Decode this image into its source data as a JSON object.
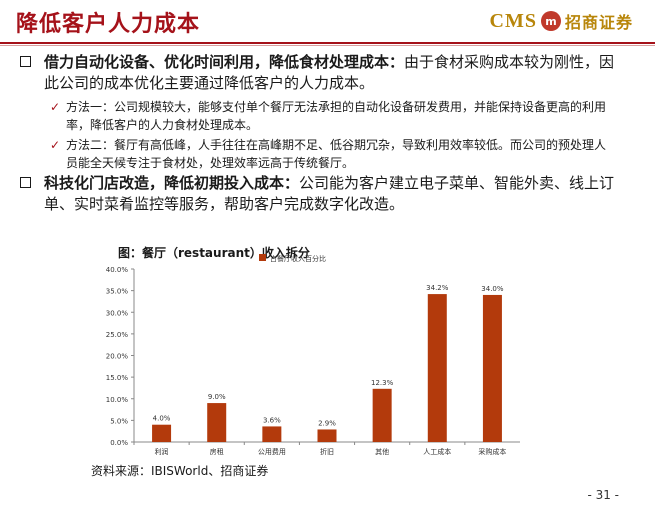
{
  "header": {
    "title": "降低客户人力成本",
    "logo_cms": "CMS",
    "logo_name": "招商证券"
  },
  "bullets": [
    {
      "bold": "借力自动化设备、优化时间利用，降低食材处理成本：",
      "text": "由于食材采购成本较为刚性，因此公司的成本优化主要通过降低客户的人力成本。"
    },
    {
      "bold": "科技化门店改造，降低初期投入成本：",
      "text": "公司能为客户建立电子菜单、智能外卖、线上订单、实时菜肴监控等服务，帮助客户完成数字化改造。"
    }
  ],
  "subpoints": [
    {
      "text": "方法一：公司规模较大，能够支付单个餐厅无法承担的自动化设备研发费用，并能保持设备更高的利用率，降低客户的人力食材处理成本。"
    },
    {
      "text": "方法二：餐厅有高低峰，人手往往在高峰期不足、低谷期冗杂，导致利用效率较低。而公司的预处理人员能全天候专注于食材处，处理效率远高于传统餐厅。"
    }
  ],
  "chart_title": "图：餐厅（restaurant）收入拆分",
  "source": "资料来源：IBISWorld、招商证券",
  "page_number": "- 31 -",
  "chart_data": {
    "type": "bar",
    "categories": [
      "利润",
      "房租",
      "公用费用",
      "折旧",
      "其他",
      "人工成本",
      "采购成本"
    ],
    "series": [
      {
        "name": "占餐厅收入百分比",
        "values": [
          4.0,
          9.0,
          3.6,
          2.9,
          12.3,
          34.2,
          34.0
        ],
        "color": "#b33a0c"
      }
    ],
    "data_labels": [
      "4.0%",
      "9.0%",
      "3.6%",
      "2.9%",
      "12.3%",
      "34.2%",
      "34.0%"
    ],
    "y_ticks": [
      "0.0%",
      "5.0%",
      "10.0%",
      "15.0%",
      "20.0%",
      "25.0%",
      "30.0%",
      "35.0%",
      "40.0%"
    ],
    "ylim": [
      0,
      40
    ],
    "grid": false,
    "legend": "top"
  }
}
